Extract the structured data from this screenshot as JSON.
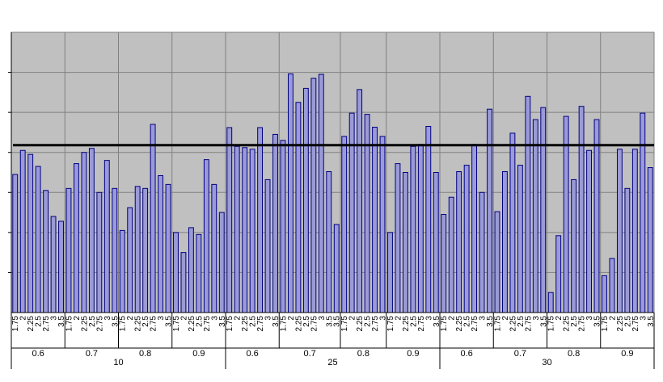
{
  "chart_data": {
    "type": "bar",
    "title": "",
    "xlabel": "",
    "ylabel": "",
    "ylim": [
      0,
      7
    ],
    "grid": true,
    "legend": "none",
    "reference_line": 4.18,
    "colors": {
      "plot_background": "#c0c0c0",
      "bar_fill": "#9a9ad8",
      "bar_edge": "#000080",
      "grid": "#808080",
      "reference_line": "#000000"
    },
    "x_levels": {
      "inner": [
        "1.75",
        "2",
        "2.25",
        "2.5",
        "2.75",
        "3",
        "3.5"
      ],
      "middle": [
        "0.6",
        "0.7",
        "0.8",
        "0.9"
      ],
      "outer": [
        "10",
        "25",
        "30"
      ]
    },
    "values": [
      3.45,
      4.05,
      3.95,
      3.65,
      3.05,
      2.4,
      2.28,
      3.1,
      3.72,
      4.0,
      4.1,
      3.0,
      3.8,
      3.1,
      2.05,
      2.62,
      3.15,
      3.1,
      4.7,
      3.42,
      3.2,
      2.0,
      1.5,
      2.12,
      1.95,
      3.82,
      3.2,
      2.5,
      4.62,
      4.15,
      4.12,
      4.08,
      4.62,
      3.32,
      4.45,
      4.3,
      5.96,
      5.25,
      5.6,
      5.85,
      5.95,
      3.52,
      2.2,
      4.4,
      4.98,
      5.57,
      4.95,
      4.63,
      4.4,
      2.0,
      3.72,
      3.5,
      4.15,
      4.2,
      4.65,
      3.5,
      2.45,
      2.88,
      3.52,
      3.68,
      4.2,
      3.0,
      5.08,
      2.52,
      3.52,
      4.48,
      3.68,
      5.4,
      4.82,
      5.12,
      0.5,
      1.92,
      4.9,
      3.32,
      5.15,
      4.05,
      4.82,
      0.92,
      1.35,
      4.08,
      3.1,
      4.08,
      4.98,
      3.62
    ]
  }
}
